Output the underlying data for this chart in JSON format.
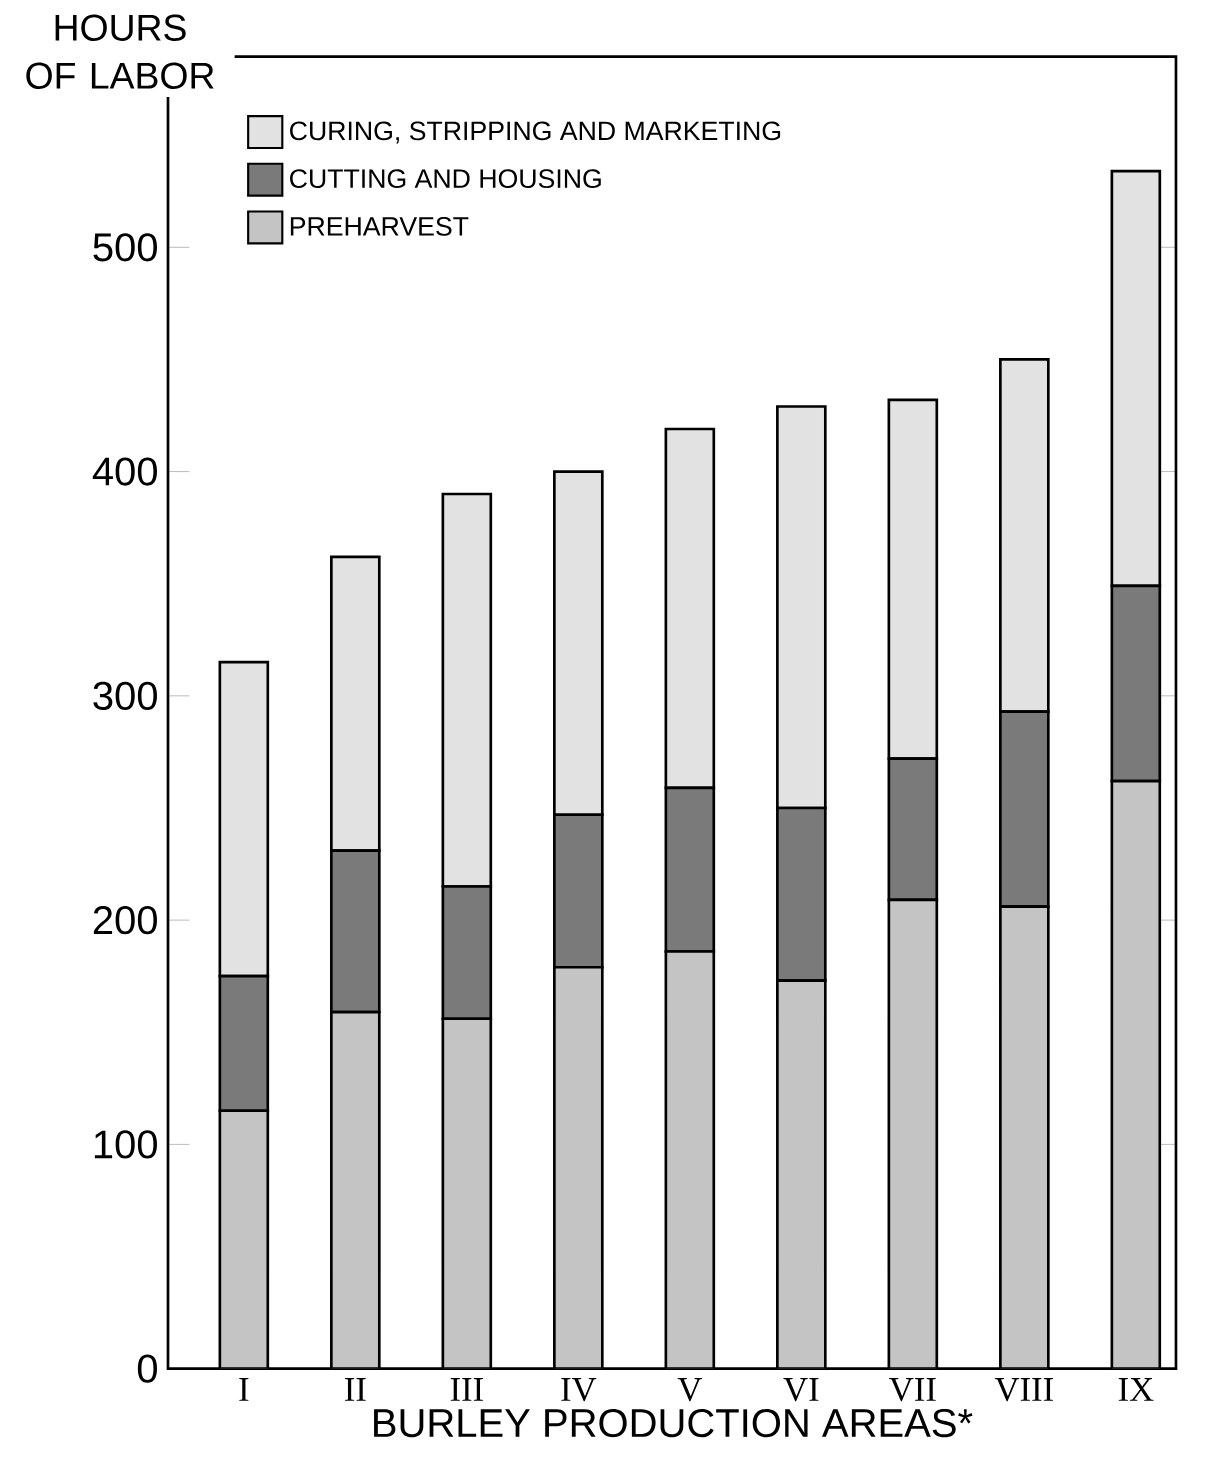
{
  "chart_data": {
    "type": "bar",
    "stacked": true,
    "ylabel": "HOURS OF LABOR",
    "xlabel": "BURLEY PRODUCTION AREAS*",
    "categories": [
      "I",
      "II",
      "III",
      "IV",
      "V",
      "VI",
      "VII",
      "VIII",
      "IX"
    ],
    "series": [
      {
        "name": "PREHARVEST",
        "color": "#c4c4c4",
        "values": [
          115,
          159,
          156,
          179,
          186,
          173,
          209,
          206,
          262
        ]
      },
      {
        "name": "CUTTING AND HOUSING",
        "color": "#7a7a7a",
        "values": [
          60,
          72,
          59,
          68,
          73,
          77,
          63,
          87,
          87
        ]
      },
      {
        "name": "CURING, STRIPPING AND MARKETING",
        "color": "#e2e2e2",
        "values": [
          140,
          131,
          175,
          153,
          160,
          179,
          160,
          157,
          185
        ]
      }
    ],
    "ylim": [
      0,
      585
    ],
    "yticks": [
      0,
      100,
      200,
      300,
      400,
      500
    ],
    "legend": "top left",
    "grid": false
  }
}
